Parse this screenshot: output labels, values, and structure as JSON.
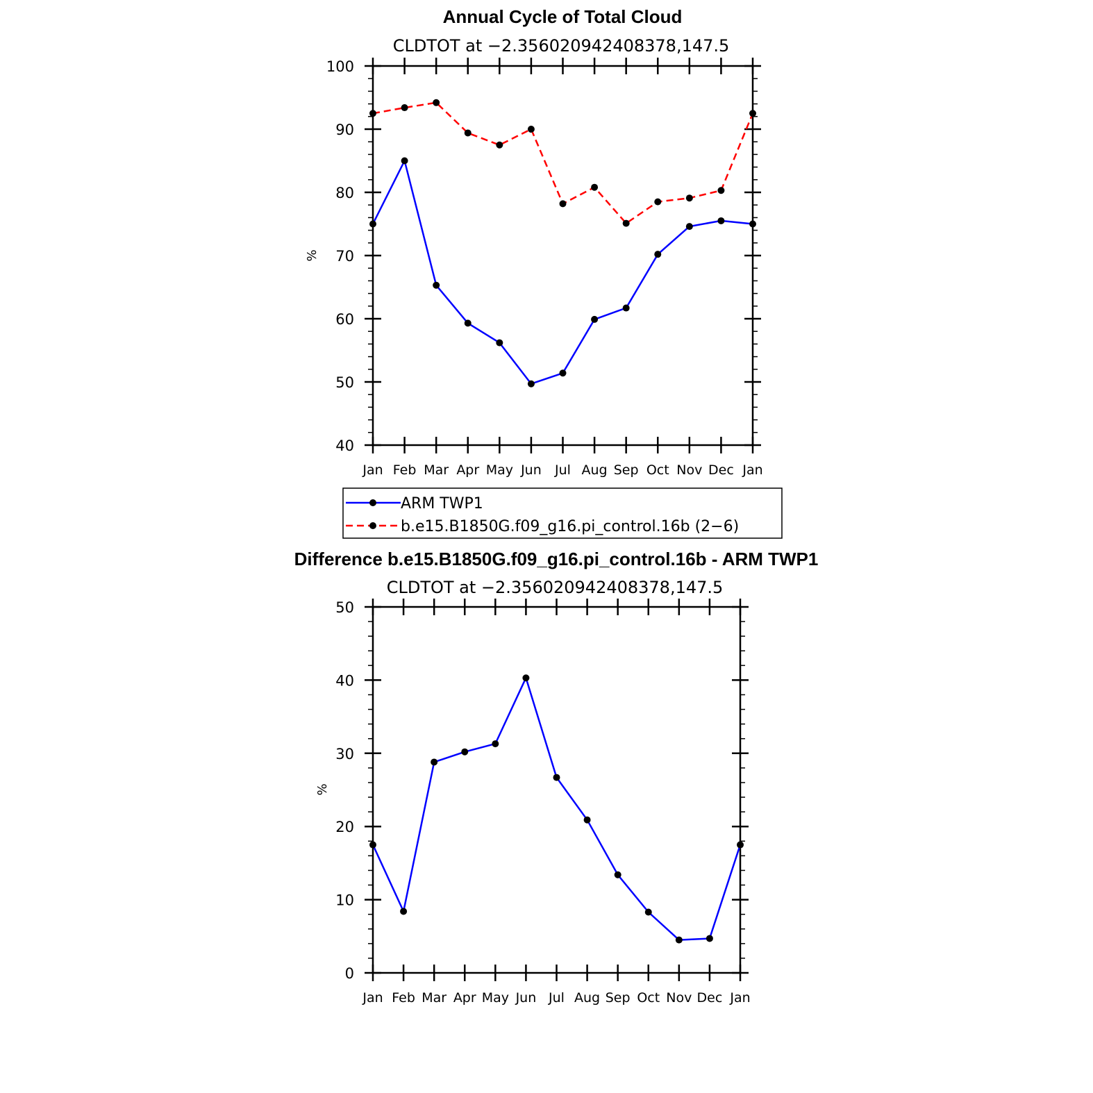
{
  "chart_data": [
    {
      "type": "line",
      "title": "Annual Cycle of Total Cloud",
      "subtitle": "CLDTOT at −2.356020942408378,147.5",
      "xlabel": "",
      "ylabel": "%",
      "categories": [
        "Jan",
        "Feb",
        "Mar",
        "Apr",
        "May",
        "Jun",
        "Jul",
        "Aug",
        "Sep",
        "Oct",
        "Nov",
        "Dec",
        "Jan"
      ],
      "ylim": [
        40,
        100
      ],
      "yticks": [
        40,
        50,
        60,
        70,
        80,
        90,
        100
      ],
      "series": [
        {
          "name": "ARM TWP1",
          "color": "#0000ff",
          "dash": "solid",
          "values": [
            75.0,
            85.0,
            65.3,
            59.3,
            56.2,
            49.7,
            51.4,
            59.9,
            61.7,
            70.2,
            74.6,
            75.5,
            75.0
          ]
        },
        {
          "name": "b.e15.B1850G.f09_g16.pi_control.16b (2−6)",
          "color": "#ff0000",
          "dash": "dashed",
          "values": [
            92.5,
            93.4,
            94.2,
            89.4,
            87.5,
            90.0,
            78.2,
            80.8,
            75.1,
            78.5,
            79.1,
            80.3,
            92.5
          ]
        }
      ],
      "legend": "below"
    },
    {
      "type": "line",
      "title": "Difference b.e15.B1850G.f09_g16.pi_control.16b - ARM TWP1",
      "subtitle": "CLDTOT at −2.356020942408378,147.5",
      "xlabel": "",
      "ylabel": "%",
      "categories": [
        "Jan",
        "Feb",
        "Mar",
        "Apr",
        "May",
        "Jun",
        "Jul",
        "Aug",
        "Sep",
        "Oct",
        "Nov",
        "Dec",
        "Jan"
      ],
      "ylim": [
        0,
        50
      ],
      "yticks": [
        0,
        10,
        20,
        30,
        40,
        50
      ],
      "series": [
        {
          "name": "Difference",
          "color": "#0000ff",
          "dash": "solid",
          "values": [
            17.5,
            8.4,
            28.8,
            30.2,
            31.3,
            40.3,
            26.7,
            20.9,
            13.4,
            8.3,
            4.5,
            4.7,
            17.5
          ]
        }
      ]
    }
  ]
}
